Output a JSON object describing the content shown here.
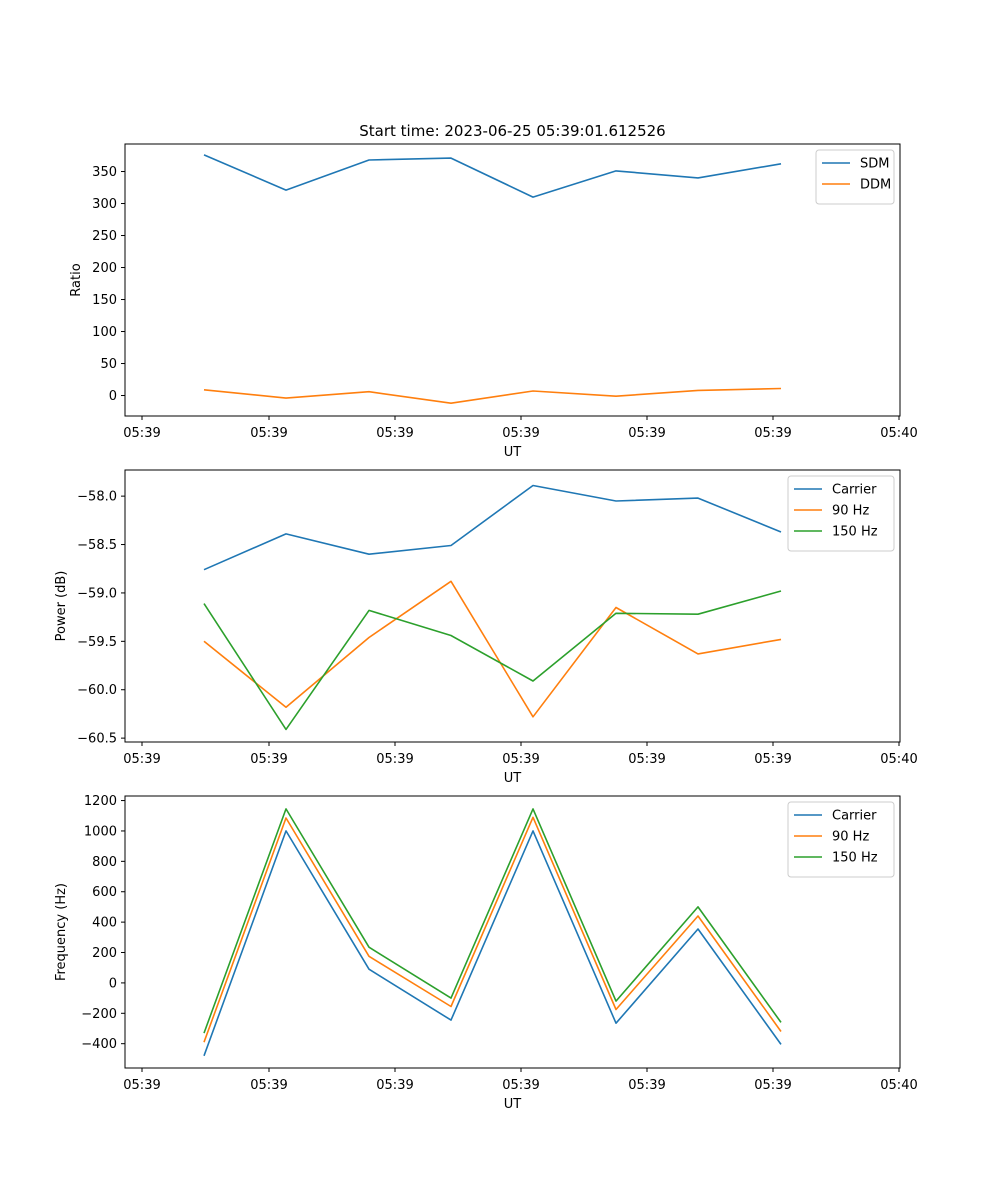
{
  "figure": {
    "title": "Start time: 2023-06-25 05:39:01.612526",
    "colors": {
      "blue": "#1f77b4",
      "orange": "#ff7f0e",
      "green": "#2ca02c"
    }
  },
  "chart_data": [
    {
      "type": "line",
      "title": "Start time: 2023-06-25 05:39:01.612526",
      "xlabel": "UT",
      "ylabel": "Ratio",
      "x_tick_labels": [
        "05:39",
        "05:39",
        "05:39",
        "05:39",
        "05:39",
        "05:39",
        "05:39",
        "05:40"
      ],
      "y_ticks": [
        0,
        50,
        100,
        150,
        200,
        250,
        300,
        350
      ],
      "ylim": [
        -32,
        393
      ],
      "legend_position": "top-right",
      "grid": false,
      "series": [
        {
          "name": "SDM",
          "color": "#1f77b4",
          "values": [
            376,
            321,
            368,
            371,
            310,
            351,
            340,
            362
          ]
        },
        {
          "name": "DDM",
          "color": "#ff7f0e",
          "values": [
            9,
            -4,
            6,
            -12,
            7,
            -1,
            8,
            11
          ]
        }
      ]
    },
    {
      "type": "line",
      "title": "",
      "xlabel": "UT",
      "ylabel": "Power (dB)",
      "x_tick_labels": [
        "05:39",
        "05:39",
        "05:39",
        "05:39",
        "05:39",
        "05:39",
        "05:39",
        "05:40"
      ],
      "y_ticks": [
        -60.5,
        -60.0,
        -59.5,
        -59.0,
        -58.5,
        -58.0
      ],
      "y_tick_labels": [
        "−60.5",
        "−60.0",
        "−59.5",
        "−59.0",
        "−58.5",
        "−58.0"
      ],
      "ylim": [
        -60.54,
        -57.73
      ],
      "legend_position": "top-right",
      "grid": false,
      "series": [
        {
          "name": "Carrier",
          "color": "#1f77b4",
          "values": [
            -58.76,
            -58.39,
            -58.6,
            -58.51,
            -57.89,
            -58.05,
            -58.02,
            -58.37
          ]
        },
        {
          "name": "90 Hz",
          "color": "#ff7f0e",
          "values": [
            -59.5,
            -60.18,
            -59.46,
            -58.88,
            -60.28,
            -59.15,
            -59.63,
            -59.48
          ]
        },
        {
          "name": "150 Hz",
          "color": "#2ca02c",
          "values": [
            -59.11,
            -60.41,
            -59.18,
            -59.44,
            -59.91,
            -59.21,
            -59.22,
            -58.98
          ]
        }
      ]
    },
    {
      "type": "line",
      "title": "",
      "xlabel": "UT",
      "ylabel": "Frequency (Hz)",
      "x_tick_labels": [
        "05:39",
        "05:39",
        "05:39",
        "05:39",
        "05:39",
        "05:39",
        "05:39",
        "05:40"
      ],
      "y_ticks": [
        -400,
        -200,
        0,
        200,
        400,
        600,
        800,
        1000,
        1200
      ],
      "y_tick_labels": [
        "−400",
        "−200",
        "0",
        "200",
        "400",
        "600",
        "800",
        "1000",
        "1200"
      ],
      "ylim": [
        -560,
        1230
      ],
      "legend_position": "top-right",
      "grid": false,
      "series": [
        {
          "name": "Carrier",
          "color": "#1f77b4",
          "values": [
            -480,
            1000,
            90,
            -245,
            1000,
            -265,
            355,
            -405
          ]
        },
        {
          "name": "90 Hz",
          "color": "#ff7f0e",
          "values": [
            -390,
            1085,
            175,
            -155,
            1090,
            -175,
            440,
            -320
          ]
        },
        {
          "name": "150 Hz",
          "color": "#2ca02c",
          "values": [
            -330,
            1145,
            235,
            -100,
            1145,
            -120,
            500,
            -260
          ]
        }
      ]
    }
  ]
}
